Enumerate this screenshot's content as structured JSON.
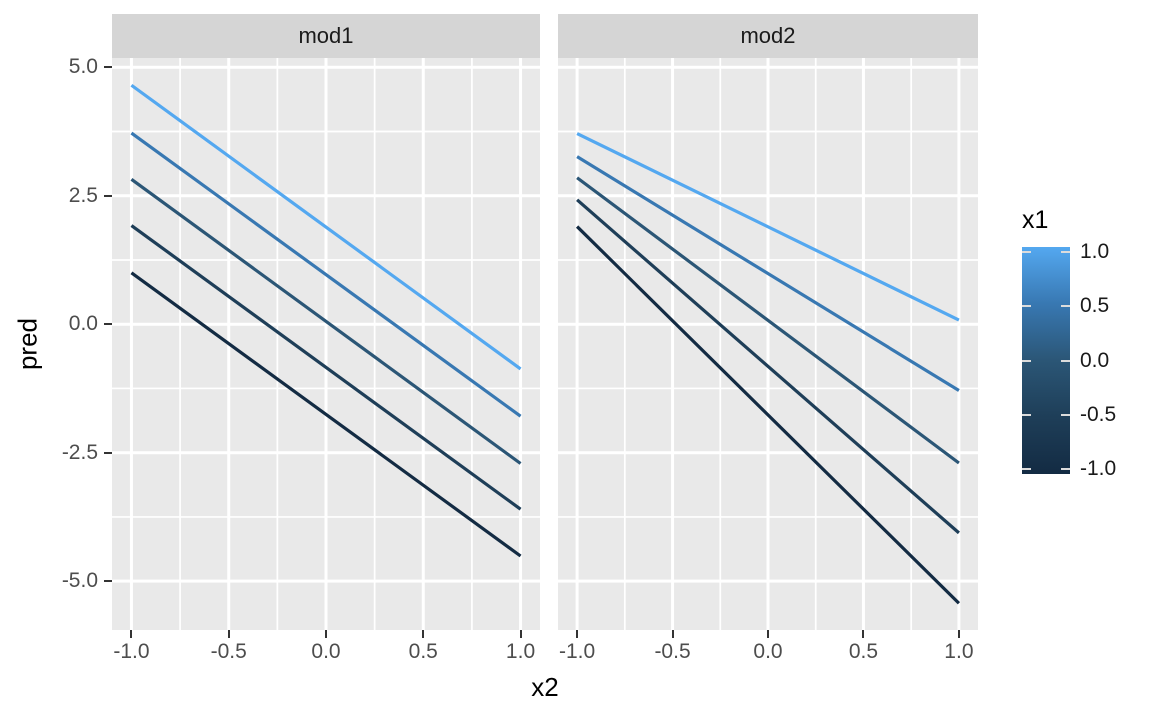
{
  "chart_data": {
    "type": "line",
    "title": "",
    "xlabel": "x2",
    "ylabel": "pred",
    "x_range": [
      -1.1,
      1.1
    ],
    "y_range": [
      -5.95,
      5.18
    ],
    "x_ticks": [
      -1.0,
      -0.5,
      0.0,
      0.5,
      1.0
    ],
    "x_tick_labels": [
      "-1.0",
      "-0.5",
      "0.0",
      "0.5",
      "1.0"
    ],
    "y_ticks": [
      5.0,
      2.5,
      0.0,
      -2.5,
      -5.0
    ],
    "y_tick_labels": [
      "5.0",
      "2.5",
      "0.0",
      "-2.5",
      "-5.0"
    ],
    "x_minor_ticks": [
      -0.75,
      -0.25,
      0.25,
      0.75
    ],
    "y_minor_ticks": [
      3.75,
      1.25,
      -1.25,
      -3.75
    ],
    "grid": true,
    "facets": [
      {
        "label": "mod1",
        "series": [
          {
            "name": "x1=1.0",
            "x1": 1.0,
            "color": "#54A8F0",
            "x": [
              -1.0,
              1.0
            ],
            "y": [
              4.65,
              -0.87
            ]
          },
          {
            "name": "x1=0.5",
            "x1": 0.5,
            "color": "#3878B2",
            "x": [
              -1.0,
              1.0
            ],
            "y": [
              3.72,
              -1.79
            ]
          },
          {
            "name": "x1=0.0",
            "x1": 0.0,
            "color": "#2B5676",
            "x": [
              -1.0,
              1.0
            ],
            "y": [
              2.82,
              -2.71
            ]
          },
          {
            "name": "x1=-0.5",
            "x1": -0.5,
            "color": "#1E3E58",
            "x": [
              -1.0,
              1.0
            ],
            "y": [
              1.92,
              -3.6
            ]
          },
          {
            "name": "x1=-1.0",
            "x1": -1.0,
            "color": "#132B43",
            "x": [
              -1.0,
              1.0
            ],
            "y": [
              1.0,
              -4.51
            ]
          }
        ]
      },
      {
        "label": "mod2",
        "series": [
          {
            "name": "x1=1.0",
            "x1": 1.0,
            "color": "#54A8F0",
            "x": [
              -1.0,
              1.0
            ],
            "y": [
              3.71,
              0.08
            ]
          },
          {
            "name": "x1=0.5",
            "x1": 0.5,
            "color": "#3878B2",
            "x": [
              -1.0,
              1.0
            ],
            "y": [
              3.26,
              -1.29
            ]
          },
          {
            "name": "x1=0.0",
            "x1": 0.0,
            "color": "#2B5676",
            "x": [
              -1.0,
              1.0
            ],
            "y": [
              2.85,
              -2.7
            ]
          },
          {
            "name": "x1=-0.5",
            "x1": -0.5,
            "color": "#1E3E58",
            "x": [
              -1.0,
              1.0
            ],
            "y": [
              2.42,
              -4.06
            ]
          },
          {
            "name": "x1=-1.0",
            "x1": -1.0,
            "color": "#132B43",
            "x": [
              -1.0,
              1.0
            ],
            "y": [
              1.9,
              -5.43
            ]
          }
        ]
      }
    ],
    "legend": {
      "title": "x1",
      "type": "colorbar",
      "position": "right",
      "limits": [
        -1.0,
        1.0
      ],
      "ticks": [
        1.0,
        0.5,
        0.0,
        -0.5,
        -1.0
      ],
      "tick_labels": [
        "1.0",
        "0.5",
        "0.0",
        "-0.5",
        "-1.0"
      ],
      "low_color": "#132B43",
      "high_color": "#56B1F7",
      "gradient_top_to_bottom": [
        "#54A8F0",
        "#3878B2",
        "#2B5676",
        "#1E3E58",
        "#132B43"
      ]
    },
    "theme": {
      "panel_background": "#E9E9E9",
      "strip_background": "#D5D5D5",
      "grid_color": "#FFFFFF",
      "tick_color": "#333333",
      "tick_label_color": "#4D4D4D",
      "axis_title_color": "#000000",
      "strip_text_color": "#1A1A1A"
    }
  }
}
